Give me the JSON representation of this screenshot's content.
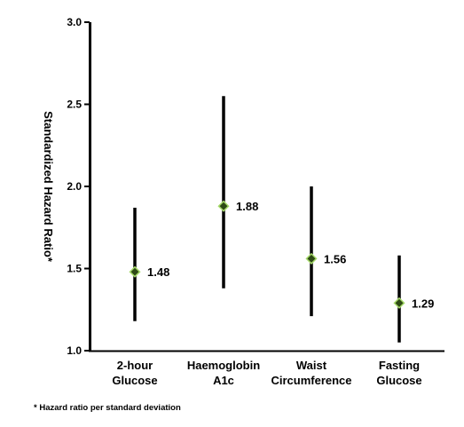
{
  "chart_data": {
    "type": "scatter",
    "title": "",
    "xlabel": "",
    "ylabel": "Standardized Hazard Ratio*",
    "ylim": [
      1.0,
      3.0
    ],
    "yticks": [
      "1.0",
      "1.5",
      "2.0",
      "2.5",
      "3.0"
    ],
    "grid": false,
    "categories": [
      [
        "2-hour",
        "Glucose"
      ],
      [
        "Haemoglobin",
        "A1c"
      ],
      [
        "Waist",
        "Circumference"
      ],
      [
        "Fasting",
        "Glucose"
      ]
    ],
    "points": [
      {
        "value": 1.48,
        "label": "1.48",
        "lower": 1.18,
        "upper": 1.87
      },
      {
        "value": 1.88,
        "label": "1.88",
        "lower": 1.38,
        "upper": 2.55
      },
      {
        "value": 1.56,
        "label": "1.56",
        "lower": 1.21,
        "upper": 2.0
      },
      {
        "value": 1.29,
        "label": "1.29",
        "lower": 1.05,
        "upper": 1.58
      }
    ],
    "marker_fill": "#2e4a16",
    "marker_stroke": "#a6d96a",
    "line_color": "#000000",
    "footnote": "* Hazard ratio per standard deviation"
  }
}
